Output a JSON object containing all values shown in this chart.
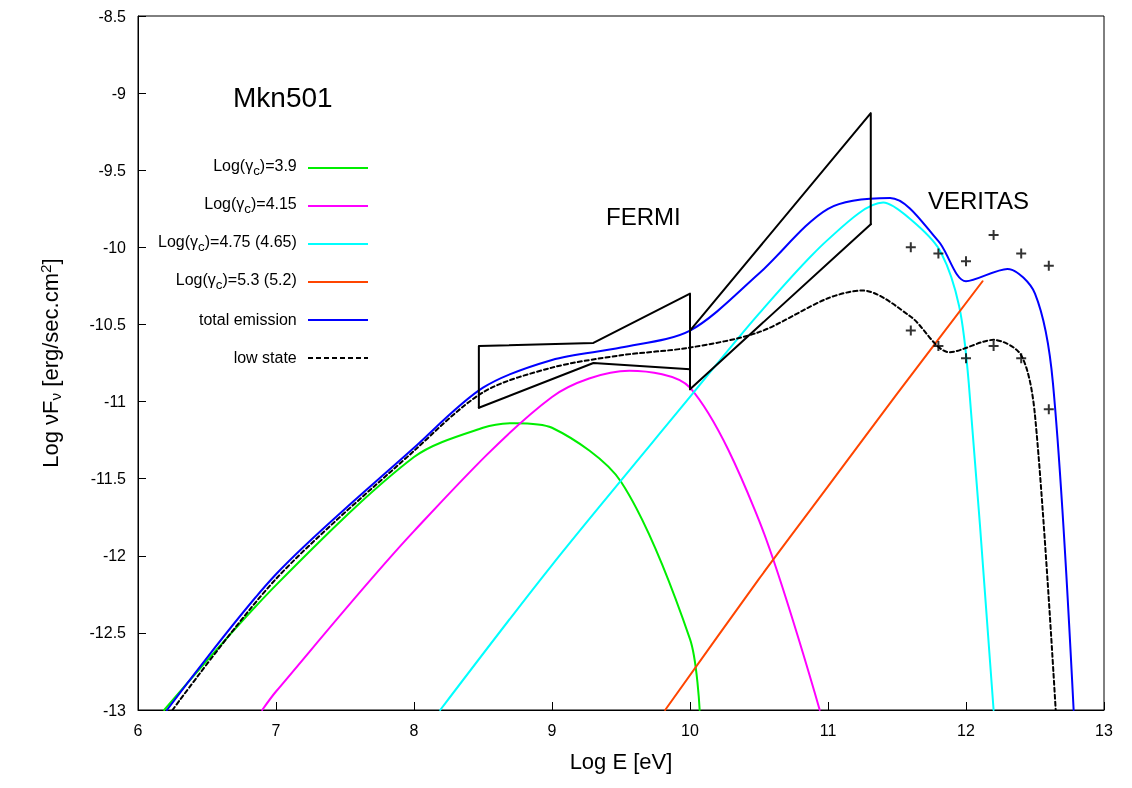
{
  "chart_data": {
    "type": "line",
    "title": "Mkn501",
    "xlabel": "Log E [eV]",
    "ylabel": "Log νF$_{ν}$ [erg/sec.cm$^{2}$]",
    "annotations": [
      "FERMI",
      "VERITAS"
    ],
    "xlim": [
      6,
      13
    ],
    "xticks": [
      6,
      7,
      8,
      9,
      10,
      11,
      12,
      13
    ],
    "ylim": [
      -13,
      -8.5
    ],
    "yticks": [
      -13,
      -12.5,
      -12,
      -11.5,
      -11,
      -10.5,
      -10,
      -9.5,
      -9,
      -8.5
    ],
    "grid": false,
    "legend": "top left",
    "marker": "none",
    "series": [
      {
        "name": "Log(γ$_{c}$)=3.9",
        "color": "#00ee00",
        "x": [
          6.19,
          7,
          8,
          8.5,
          8.73,
          9,
          9.5,
          10,
          10.07
        ],
        "values": [
          -13,
          -12.19,
          -11.36,
          -11.17,
          -11.14,
          -11.17,
          -11.52,
          -12.54,
          -13
        ]
      },
      {
        "name": "Log(γ$_{c}$)=4.15",
        "color": "#ff00ff",
        "x": [
          6.9,
          7,
          8,
          9,
          9.56,
          10,
          10.5,
          10.94
        ],
        "values": [
          -13,
          -12.88,
          -11.84,
          -10.97,
          -10.8,
          -10.91,
          -11.77,
          -13
        ]
      },
      {
        "name": "Log(γ$_{c}$)=4.75 (4.65)",
        "color": "#00ffff",
        "x": [
          8.19,
          9,
          10,
          10.5,
          11,
          11.4,
          11.6,
          11.81,
          11.95,
          12.02,
          12.2
        ],
        "values": [
          -13,
          -12.06,
          -10.97,
          -10.43,
          -9.95,
          -9.71,
          -9.82,
          -10.02,
          -10.38,
          -10.88,
          -13
        ]
      },
      {
        "name": "Log(γ$_{c}$)=5.3 (5.2)",
        "color": "#ff4500",
        "x": [
          9.82,
          10.5,
          11,
          11.5,
          12.12
        ],
        "values": [
          -13,
          -12.15,
          -11.55,
          -10.95,
          -10.22
        ]
      },
      {
        "name": "total emission",
        "color": "#0000ff",
        "x": [
          6.21,
          7,
          8,
          8.5,
          9,
          9.5,
          10,
          10.5,
          11,
          11.45,
          11.8,
          12,
          12.3,
          12.5,
          12.63,
          12.78
        ],
        "values": [
          -13,
          -12.12,
          -11.3,
          -10.91,
          -10.73,
          -10.65,
          -10.54,
          -10.17,
          -9.75,
          -9.68,
          -9.96,
          -10.22,
          -10.14,
          -10.3,
          -10.88,
          -13
        ]
      },
      {
        "name": "low state",
        "color": "#000000",
        "line_style": "dashed",
        "x": [
          6.25,
          7,
          8,
          8.5,
          9,
          9.5,
          10,
          10.5,
          11,
          11.25,
          11.6,
          11.88,
          12.2,
          12.4,
          12.5,
          12.65
        ],
        "values": [
          -13,
          -12.15,
          -11.32,
          -10.94,
          -10.78,
          -10.7,
          -10.65,
          -10.55,
          -10.33,
          -10.28,
          -10.45,
          -10.68,
          -10.6,
          -10.7,
          -11.09,
          -13
        ]
      },
      {
        "color": "#000000",
        "x": [
          8.47,
          8.47,
          9.3,
          10,
          10
        ],
        "values": [
          -11.04,
          -10.64,
          -10.62,
          -10.3,
          -10.79
        ]
      },
      {
        "color": "#000000",
        "x": [
          8.47,
          9.3,
          10
        ],
        "values": [
          -11.04,
          -10.75,
          -10.79
        ]
      },
      {
        "color": "#000000",
        "x": [
          10,
          10,
          11.31,
          11.31
        ],
        "values": [
          -10.92,
          -10.54,
          -9.13,
          -9.85
        ]
      },
      {
        "color": "#000000",
        "x": [
          10,
          11.31
        ],
        "values": [
          -10.92,
          -9.85
        ]
      },
      {
        "type": "scatter",
        "marker": "cross",
        "color": "#000000",
        "x": [
          11.6,
          11.8,
          12,
          12.2,
          12.4,
          12.6
        ],
        "values": [
          -10,
          -10.04,
          -10.09,
          -9.92,
          -10.04,
          -10.12
        ]
      },
      {
        "type": "scatter",
        "marker": "cross",
        "color": "#000000",
        "x": [
          11.6,
          11.8,
          12,
          12.2,
          12.4,
          12.6
        ],
        "values": [
          -10.54,
          -10.64,
          -10.72,
          -10.64,
          -10.72,
          -11.05
        ]
      }
    ]
  }
}
